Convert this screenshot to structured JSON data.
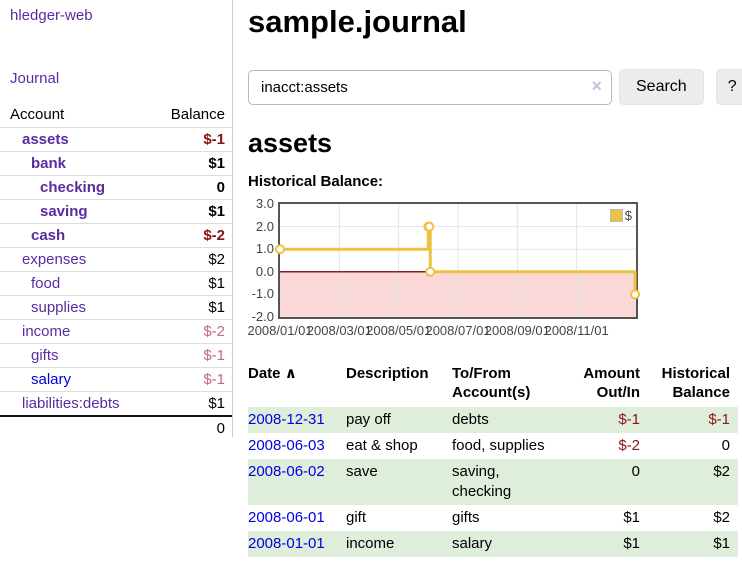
{
  "sidebar": {
    "app_title": "hledger-web",
    "journal_link": "Journal",
    "accounts_header": {
      "account": "Account",
      "balance": "Balance"
    },
    "accounts": [
      {
        "name": "assets",
        "balance": "$-1",
        "depth": 1,
        "in_query": true
      },
      {
        "name": "bank",
        "balance": "$1",
        "depth": 2,
        "in_query": true
      },
      {
        "name": "checking",
        "balance": "0",
        "depth": 3,
        "in_query": true
      },
      {
        "name": "saving",
        "balance": "$1",
        "depth": 3,
        "in_query": true
      },
      {
        "name": "cash",
        "balance": "$-2",
        "depth": 2,
        "in_query": true
      },
      {
        "name": "expenses",
        "balance": "$2",
        "depth": 1,
        "in_query": false
      },
      {
        "name": "food",
        "balance": "$1",
        "depth": 2,
        "in_query": false
      },
      {
        "name": "supplies",
        "balance": "$1",
        "depth": 2,
        "in_query": false
      },
      {
        "name": "income",
        "balance": "$-2",
        "depth": 1,
        "in_query": false
      },
      {
        "name": "gifts",
        "balance": "$-1",
        "depth": 2,
        "in_query": false
      },
      {
        "name": "salary",
        "balance": "$-1",
        "depth": 2,
        "in_query": false
      },
      {
        "name": "liabilities:debts",
        "balance": "$1",
        "depth": 1,
        "in_query": false
      }
    ],
    "total": "0"
  },
  "main": {
    "title": "sample.journal",
    "search": {
      "value": "inacct:assets",
      "clear_icon": "×",
      "button": "Search",
      "help_button": "?"
    },
    "account_heading": "assets",
    "chart_label": "Historical Balance:"
  },
  "chart_data": {
    "type": "line",
    "step": true,
    "title": "Historical Balance",
    "series": [
      {
        "name": "$",
        "color": "#EDC240",
        "points": [
          [
            "2008-01-01",
            1
          ],
          [
            "2008-06-01",
            2
          ],
          [
            "2008-06-02",
            2
          ],
          [
            "2008-06-03",
            0
          ],
          [
            "2008-12-31",
            -1
          ]
        ]
      }
    ],
    "ylim": [
      -2,
      3
    ],
    "yticks": [
      "3.0",
      "2.0",
      "1.0",
      "0.0",
      "-1.0",
      "-2.0"
    ],
    "xtick_labels": [
      "2008/01/01",
      "2008/03/01",
      "2008/05/01",
      "2008/07/01",
      "2008/09/01",
      "2008/11/01"
    ],
    "x_range": [
      "2008-01-01",
      "2009-01-01"
    ],
    "grid": true,
    "negative_region_color": "#fbd8d8",
    "zero_line_color": "#8b2020",
    "legend": {
      "label": "$",
      "position": "top-right"
    }
  },
  "transactions": {
    "sort_icon": "∧",
    "headers": [
      "Date",
      "Description",
      "To/From Account(s)",
      "Amount Out/In",
      "Historical Balance"
    ],
    "rows": [
      {
        "date": "2008-12-31",
        "description": "pay off",
        "accounts": "debts",
        "amount": "$-1",
        "balance": "$-1"
      },
      {
        "date": "2008-06-03",
        "description": "eat & shop",
        "accounts": "food, supplies",
        "amount": "$-2",
        "balance": "0"
      },
      {
        "date": "2008-06-02",
        "description": "save",
        "accounts": "saving, checking",
        "amount": "0",
        "balance": "$2"
      },
      {
        "date": "2008-06-01",
        "description": "gift",
        "accounts": "gifts",
        "amount": "$1",
        "balance": "$2"
      },
      {
        "date": "2008-01-01",
        "description": "income",
        "accounts": "salary",
        "amount": "$1",
        "balance": "$1"
      }
    ]
  },
  "colors": {
    "link_purple": "#5a2ca0",
    "link_blue": "#0000e0",
    "negative_strong": "#871414",
    "negative_soft": "#bd6b7d",
    "table_negative": "#8b1616",
    "row_stripe_green": "#deeeda",
    "chart_series": "#EDC240"
  }
}
